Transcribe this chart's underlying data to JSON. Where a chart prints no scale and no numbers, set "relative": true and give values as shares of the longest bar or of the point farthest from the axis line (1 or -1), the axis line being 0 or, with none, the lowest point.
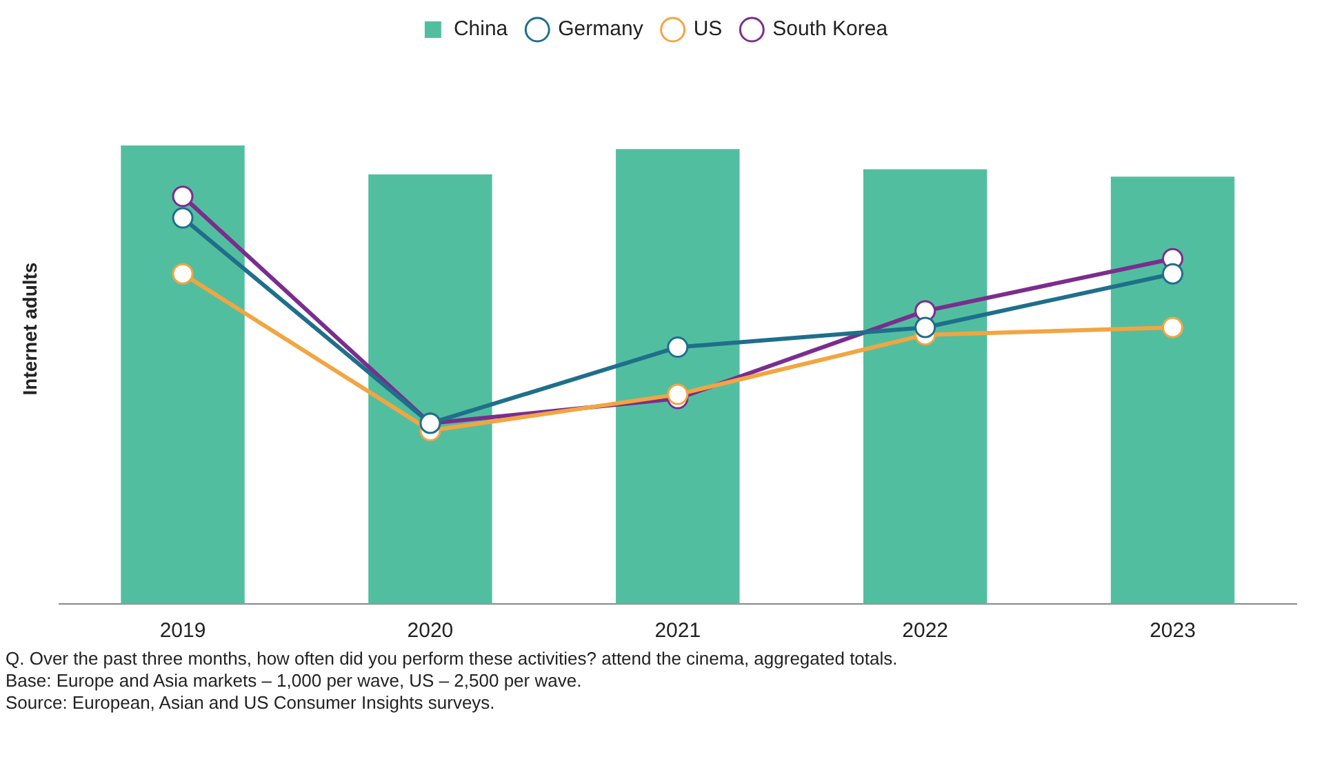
{
  "chart_data": {
    "type": "bar",
    "relative": true,
    "ylabel": "Internet adults",
    "categories": [
      "2019",
      "2020",
      "2021",
      "2022",
      "2023"
    ],
    "legend": "top",
    "marker": "circle",
    "series": [
      {
        "name": "China",
        "color": "#52bea0",
        "values": [
          1,
          0.937,
          0.992,
          0.948,
          0.932
        ]
      },
      {
        "name": "Germany",
        "type": "line",
        "color": "#1f6f8b",
        "values": [
          0.842,
          0.394,
          0.56,
          0.603,
          0.72
        ]
      },
      {
        "name": "US",
        "type": "line",
        "color": "#f2a541",
        "values": [
          0.72,
          0.378,
          0.457,
          0.587,
          0.603
        ]
      },
      {
        "name": "South Korea",
        "type": "line",
        "color": "#7b2d8e",
        "values": [
          0.889,
          0.394,
          0.448,
          0.639,
          0.753
        ]
      }
    ],
    "annotations": [
      "Q. Over the past three months, how often did you perform these activities? attend the cinema, aggregated totals.",
      "Base: Europe and Asia markets – 1,000 per wave, US – 2,500 per wave.",
      "Source: European, Asian and US Consumer Insights surveys."
    ]
  }
}
